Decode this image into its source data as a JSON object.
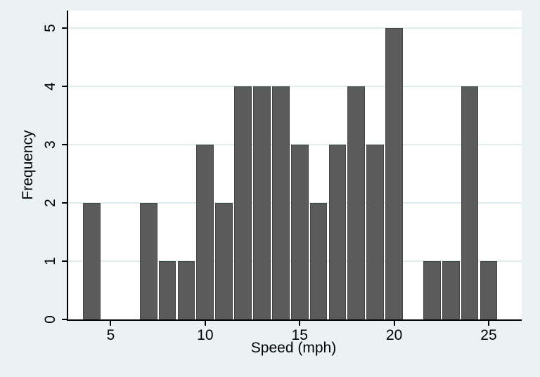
{
  "chart_data": {
    "type": "bar",
    "subtype": "histogram",
    "title": "",
    "xlabel": "Speed (mph)",
    "ylabel": "Frequency",
    "x": [
      4,
      7,
      8,
      9,
      10,
      11,
      12,
      13,
      14,
      15,
      16,
      17,
      18,
      19,
      20,
      22,
      23,
      24,
      25
    ],
    "values": [
      2,
      2,
      1,
      1,
      3,
      2,
      4,
      4,
      4,
      3,
      2,
      3,
      4,
      3,
      5,
      1,
      1,
      4,
      1
    ],
    "x_ticks": [
      5,
      10,
      15,
      20,
      25
    ],
    "y_ticks": [
      0,
      1,
      2,
      3,
      4,
      5
    ],
    "xlim": [
      2.75,
      26.75
    ],
    "ylim": [
      0,
      5.3
    ],
    "bar_width": 0.92,
    "bar_color": "#5b5b5b",
    "bar_outline": "#454545",
    "background": "#eaf2f3",
    "plot_background": "#ffffff",
    "gridline_color": "#e0edee",
    "axis_color": "#000000",
    "grid": "horizontal",
    "legend": "none"
  }
}
